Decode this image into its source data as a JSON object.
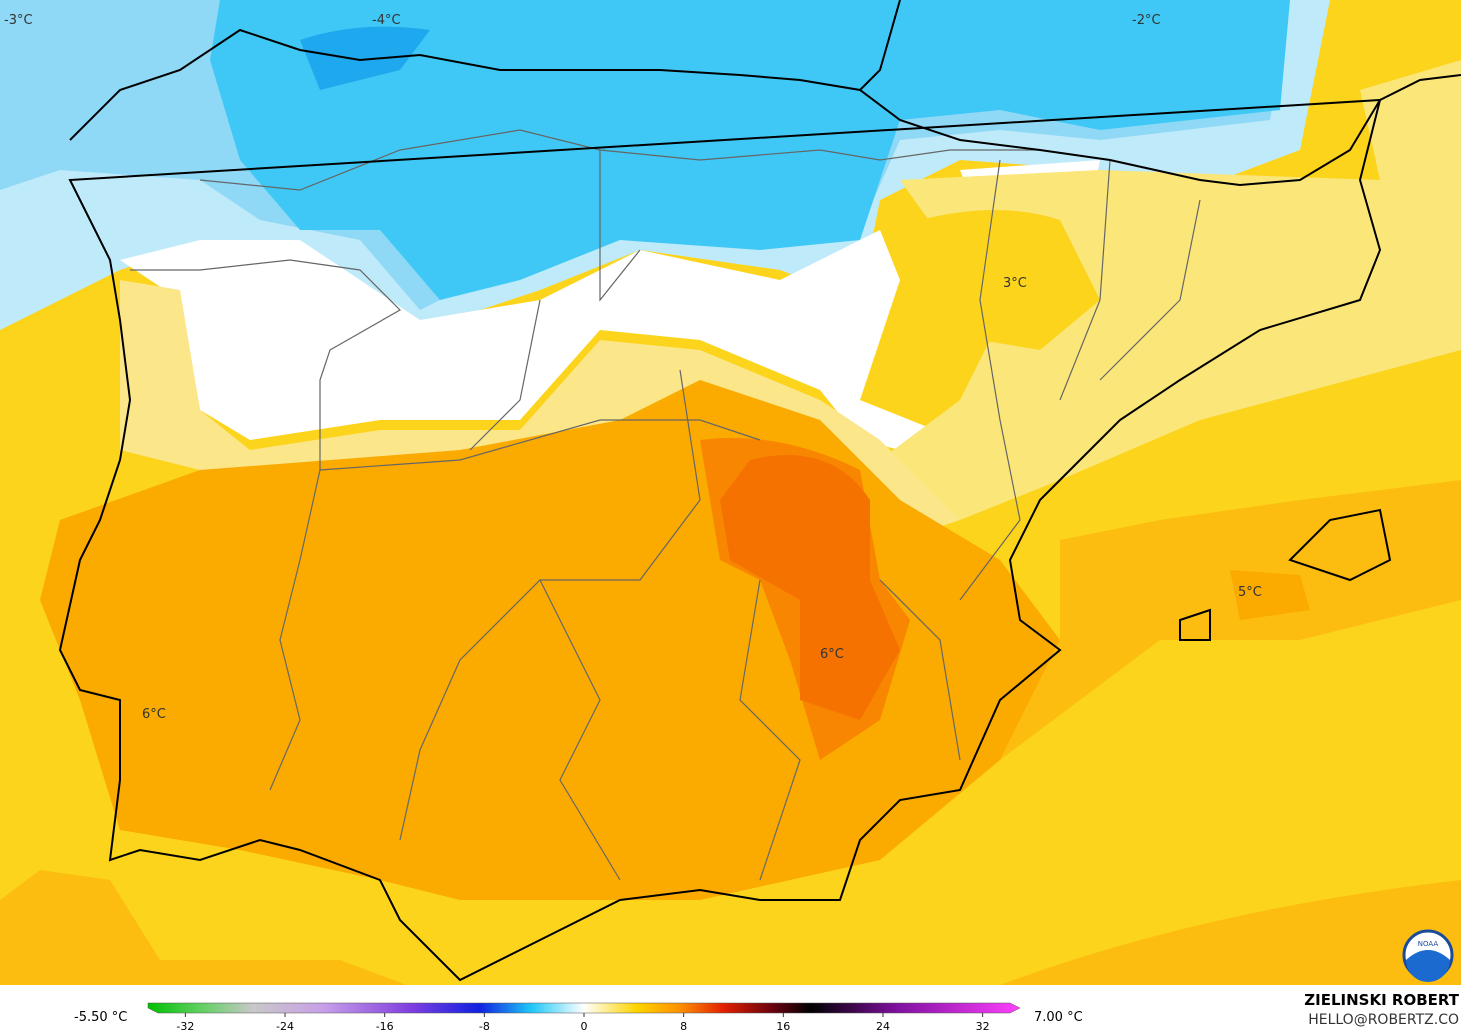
{
  "map_labels": [
    "-3°C",
    "-4°C",
    "-2°C",
    "3°C",
    "5°C",
    "6°C",
    "6°C"
  ],
  "colorbar": {
    "lim": [
      -35,
      35
    ],
    "ticks": [
      -32,
      -24,
      -16,
      -8,
      0,
      8,
      16,
      24,
      32
    ],
    "min_label": "-5.50 °C",
    "max_label": "7.00 °C"
  },
  "credit": {
    "name": "ZIELINSKI ROBERT",
    "contact": "HELLO@ROBERTZ.CO",
    "logo": "NOAA"
  }
}
